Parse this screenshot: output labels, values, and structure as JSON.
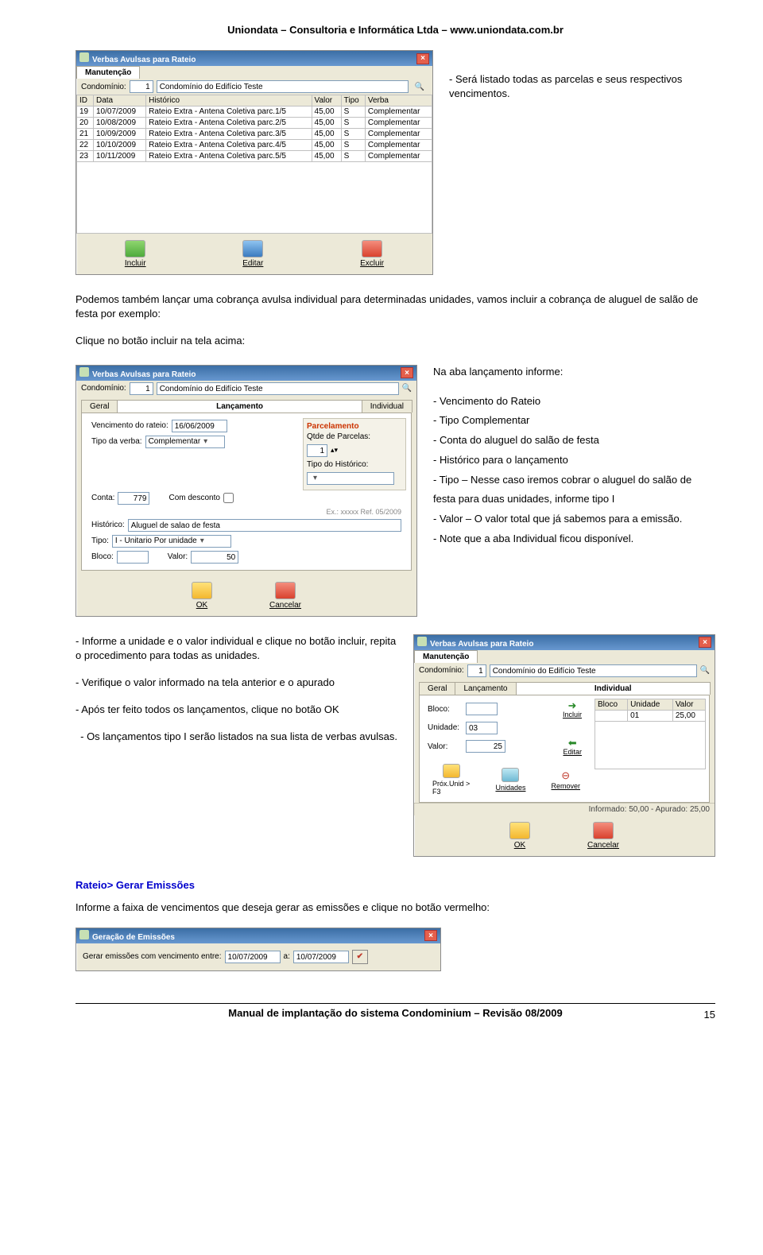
{
  "header": "Uniondata – Consultoria e Informática Ltda – www.uniondata.com.br",
  "footer": "Manual de implantação do sistema Condominium – Revisão 08/2009",
  "page_number": "15",
  "top_text": "- Será listado todas as parcelas e seus respectivos vencimentos.",
  "mid_para": "Podemos também lançar uma cobrança avulsa individual para determinadas unidades, vamos incluir a cobrança de aluguel de salão de festa por exemplo:",
  "mid_para2": "Clique no botão incluir na tela acima:",
  "mid_intro": "Na aba lançamento informe:",
  "mid_bullets": [
    "- Vencimento do Rateio",
    "- Tipo Complementar",
    "- Conta do aluguel do salão de festa",
    "- Histórico para o lançamento",
    "- Tipo – Nesse caso iremos cobrar o aluguel do salão de festa para duas unidades, informe tipo I",
    "- Valor – O valor total que já sabemos para a emissão.",
    "- Note que a aba Individual ficou disponível."
  ],
  "bottom_paras": [
    "- Informe a unidade e o valor individual e clique no botão incluir, repita o procedimento para todas as unidades.",
    "- Verifique o valor informado na tela anterior e o apurado",
    "- Após ter feito todos os lançamentos, clique no botão OK",
    "- Os lançamentos tipo I serão listados na sua lista de verbas avulsas."
  ],
  "heading_rateio": "Rateio> Gerar Emissões",
  "rateio_text": "Informe a faixa de vencimentos que deseja gerar as emissões e clique no botão vermelho:",
  "win1": {
    "title": "Verbas Avulsas para Rateio",
    "tab_manut": "Manutenção",
    "condominio_label": "Condomínio:",
    "condominio_num": "1",
    "condominio_nome": "Condomínio do Edifício Teste",
    "columns": [
      "ID",
      "Data",
      "Histórico",
      "Valor",
      "Tipo",
      "Verba"
    ],
    "rows": [
      [
        "19",
        "10/07/2009",
        "Rateio Extra - Antena Coletiva parc.1/5",
        "45,00",
        "S",
        "Complementar"
      ],
      [
        "20",
        "10/08/2009",
        "Rateio Extra - Antena Coletiva parc.2/5",
        "45,00",
        "S",
        "Complementar"
      ],
      [
        "21",
        "10/09/2009",
        "Rateio Extra - Antena Coletiva parc.3/5",
        "45,00",
        "S",
        "Complementar"
      ],
      [
        "22",
        "10/10/2009",
        "Rateio Extra - Antena Coletiva parc.4/5",
        "45,00",
        "S",
        "Complementar"
      ],
      [
        "23",
        "10/11/2009",
        "Rateio Extra - Antena Coletiva parc.5/5",
        "45,00",
        "S",
        "Complementar"
      ]
    ],
    "btn_incluir": "Incluir",
    "btn_editar": "Editar",
    "btn_excluir": "Excluir"
  },
  "win2": {
    "title": "Verbas Avulsas para Rateio",
    "condominio_label": "Condomínio:",
    "condominio_num": "1",
    "condominio_nome": "Condomínio do Edifício Teste",
    "tab_geral": "Geral",
    "tab_lanc": "Lançamento",
    "tab_indiv": "Individual",
    "parcelamento": "Parcelamento",
    "venc_label": "Vencimento do rateio:",
    "venc_val": "16/06/2009",
    "qtde_label": "Qtde de Parcelas:",
    "qtde_val": "1",
    "tipo_verba_label": "Tipo da verba:",
    "tipo_verba_val": "Complementar",
    "tipo_hist_label": "Tipo do Histórico:",
    "conta_label": "Conta:",
    "conta_val": "779",
    "desc_label": "Com desconto",
    "ex_label": "Ex.: xxxxx Ref. 05/2009",
    "hist_label": "Histórico:",
    "hist_val": "Aluguel de salao de festa",
    "tipo_label": "Tipo:",
    "tipo_val": "I - Unitario Por unidade",
    "bloco_label": "Bloco:",
    "valor_label": "Valor:",
    "valor_val": "50",
    "btn_ok": "OK",
    "btn_cancel": "Cancelar"
  },
  "win3": {
    "title": "Verbas Avulsas para Rateio",
    "tab_manut": "Manutenção",
    "condominio_label": "Condomínio:",
    "condominio_num": "1",
    "condominio_nome": "Condomínio do Edifício Teste",
    "tab_geral": "Geral",
    "tab_lanc": "Lançamento",
    "tab_indiv": "Individual",
    "bloco_label": "Bloco:",
    "unidade_label": "Unidade:",
    "unidade_val": "03",
    "valor_label": "Valor:",
    "valor_val": "25",
    "btn_incluir": "Incluir",
    "btn_editar": "Editar",
    "btn_remover": "Remover",
    "btn_prox": "Próx.Unid > F3",
    "btn_unidades": "Unidades",
    "grid_cols": [
      "Bloco",
      "Unidade",
      "Valor"
    ],
    "grid_row": [
      "",
      "01",
      "25,00"
    ],
    "informado": "Informado: 50,00 - Apurado: 25,00",
    "btn_ok": "OK",
    "btn_cancel": "Cancelar"
  },
  "win4": {
    "title": "Geração de Emissões",
    "label": "Gerar emissões com vencimento entre:",
    "d1": "10/07/2009",
    "a": "a:",
    "d2": "10/07/2009"
  }
}
